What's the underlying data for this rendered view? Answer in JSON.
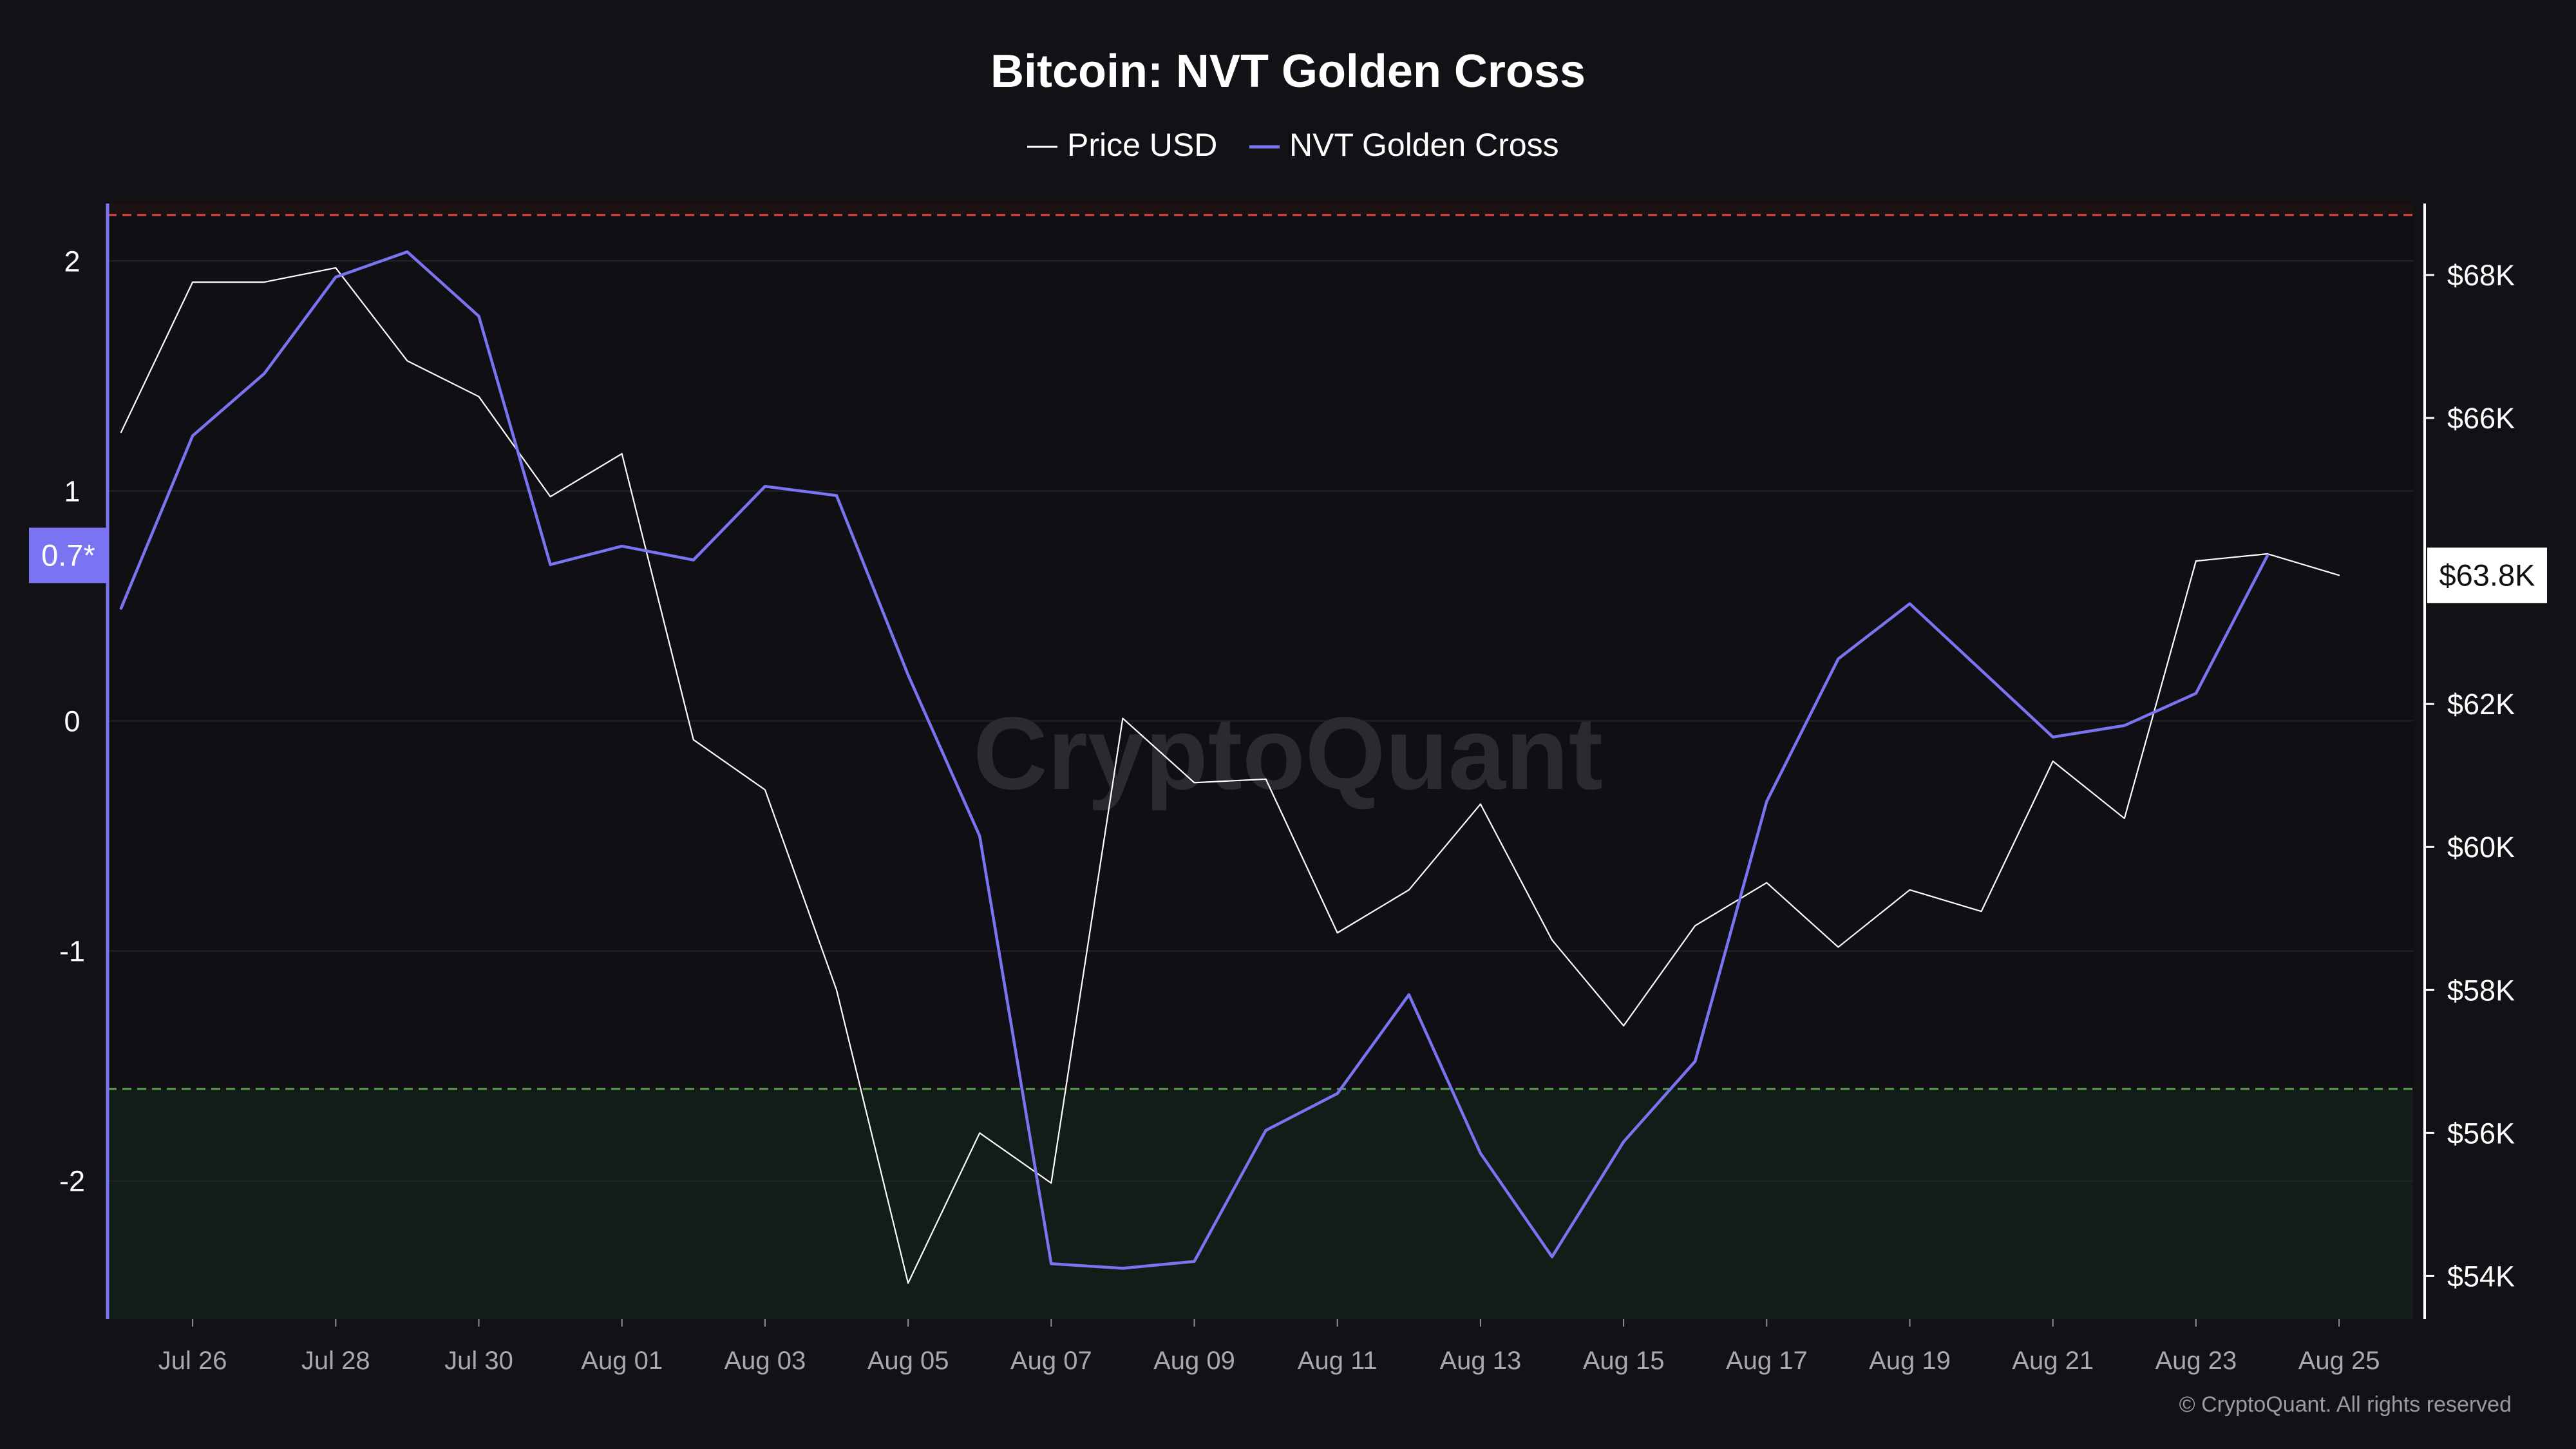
{
  "chart_data": {
    "type": "line",
    "title": "Bitcoin: NVT Golden Cross",
    "legend_position": "top-center",
    "legend": [
      {
        "name": "Price USD",
        "color": "#ffffff"
      },
      {
        "name": "NVT Golden Cross",
        "color": "#7b74f2"
      }
    ],
    "categories": [
      "Jul 25",
      "Jul 26",
      "Jul 27",
      "Jul 28",
      "Jul 29",
      "Jul 30",
      "Jul 31",
      "Aug 01",
      "Aug 02",
      "Aug 03",
      "Aug 04",
      "Aug 05",
      "Aug 06",
      "Aug 07",
      "Aug 08",
      "Aug 09",
      "Aug 10",
      "Aug 11",
      "Aug 12",
      "Aug 13",
      "Aug 14",
      "Aug 15",
      "Aug 16",
      "Aug 17",
      "Aug 18",
      "Aug 19",
      "Aug 20",
      "Aug 21",
      "Aug 22",
      "Aug 23",
      "Aug 24",
      "Aug 25"
    ],
    "x_tick_labels": [
      "Jul 26",
      "Jul 28",
      "Jul 30",
      "Aug 01",
      "Aug 03",
      "Aug 05",
      "Aug 07",
      "Aug 09",
      "Aug 11",
      "Aug 13",
      "Aug 15",
      "Aug 17",
      "Aug 19",
      "Aug 21",
      "Aug 23",
      "Aug 25"
    ],
    "series": [
      {
        "name": "Price USD",
        "axis": "right",
        "color": "#ffffff",
        "values": [
          65800,
          67900,
          67900,
          68100,
          66800,
          66300,
          64900,
          65500,
          61500,
          60800,
          58000,
          53900,
          56000,
          55300,
          61800,
          60900,
          60950,
          58800,
          59400,
          60600,
          58700,
          57500,
          58900,
          59500,
          58600,
          59400,
          59100,
          61200,
          60400,
          64000,
          64100,
          63800
        ]
      },
      {
        "name": "NVT Golden Cross",
        "axis": "left",
        "color": "#7b74f2",
        "values": [
          0.49,
          1.24,
          1.51,
          1.93,
          2.04,
          1.76,
          0.68,
          0.76,
          0.7,
          1.02,
          0.98,
          0.2,
          -0.5,
          -2.36,
          -2.38,
          -2.35,
          -1.78,
          -1.62,
          -1.19,
          -1.88,
          -2.33,
          -1.83,
          -1.48,
          -0.35,
          0.27,
          0.51,
          0.22,
          -0.07,
          -0.02,
          0.12,
          0.72,
          null
        ]
      }
    ],
    "y_left": {
      "ticks": [
        2,
        1,
        0,
        -1,
        -2
      ],
      "tick_labels": [
        "2",
        "1",
        "0",
        "-1",
        "-2"
      ],
      "range": [
        -2.6,
        2.25
      ]
    },
    "y_right": {
      "ticks": [
        68000,
        66000,
        62000,
        60000,
        58000,
        56000,
        54000
      ],
      "tick_labels": [
        "$68K",
        "$66K",
        "$62K",
        "$60K",
        "$58K",
        "$56K",
        "$54K"
      ],
      "range": [
        53400,
        69000
      ]
    },
    "current_left_badge": "0.7*",
    "current_right_badge": "$63.8K",
    "upper_threshold": 2.2,
    "lower_threshold": -1.6,
    "upper_threshold_color": "#e04444",
    "lower_threshold_color": "#5aa050",
    "lower_zone_color": "#131d18",
    "grid": true,
    "watermark": "CryptoQuant",
    "copyright": "© CryptoQuant. All rights reserved"
  }
}
